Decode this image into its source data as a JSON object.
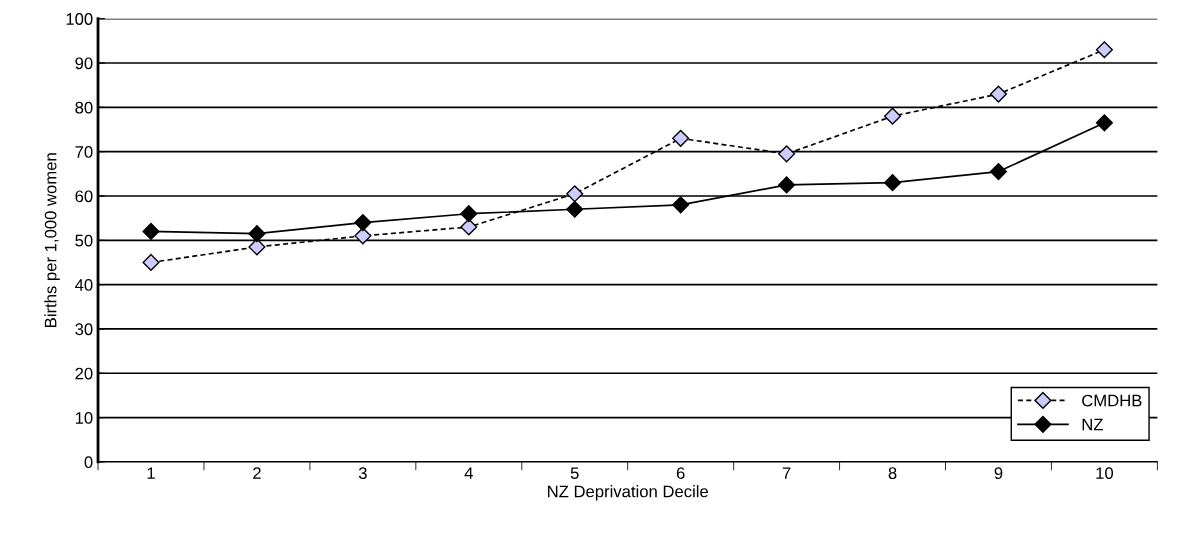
{
  "chart_data": {
    "type": "line",
    "xlabel": "NZ Deprivation Decile",
    "ylabel": "Births per 1,000 women",
    "categories": [
      "1",
      "2",
      "3",
      "4",
      "5",
      "6",
      "7",
      "8",
      "9",
      "10"
    ],
    "series": [
      {
        "name": "CMDHB",
        "color": "#ccccff",
        "line_style": "dashed",
        "values": [
          45,
          48.5,
          51,
          53,
          60.5,
          73,
          69.5,
          78,
          83,
          93
        ]
      },
      {
        "name": "NZ",
        "color": "#000000",
        "line_style": "solid",
        "values": [
          52,
          51.5,
          54,
          56,
          57,
          58,
          62.5,
          63,
          65.5,
          76.5
        ]
      }
    ],
    "ylim": [
      0,
      100
    ],
    "yticks": [
      0,
      10,
      20,
      30,
      40,
      50,
      60,
      70,
      80,
      90,
      100
    ],
    "grid": "y",
    "legend": "bottom right",
    "marker": "diamond"
  }
}
